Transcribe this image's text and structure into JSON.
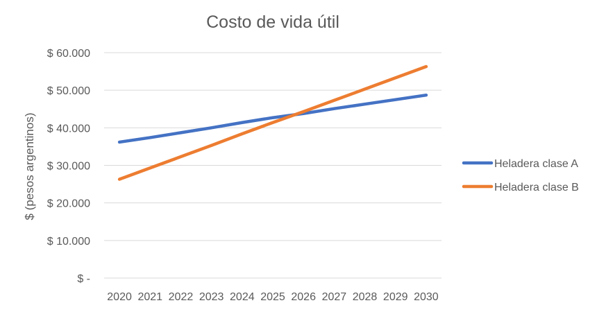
{
  "chart_data": {
    "type": "line",
    "title": "Costo de vida útil",
    "xlabel": "",
    "ylabel": "$ (pesos argentinos)",
    "x": [
      "2020",
      "2021",
      "2022",
      "2023",
      "2024",
      "2025",
      "2026",
      "2027",
      "2028",
      "2029",
      "2030"
    ],
    "ylim": [
      0,
      60000
    ],
    "yticks": [
      0,
      10000,
      20000,
      30000,
      40000,
      50000,
      60000
    ],
    "ytick_labels": [
      "$ -",
      "$ 10.000",
      "$ 20.000",
      "$ 30.000",
      "$ 40.000",
      "$ 50.000",
      "$ 60.000"
    ],
    "grid": true,
    "legend": "right",
    "series": [
      {
        "name": "Heladera clase A",
        "color": "#4472C4",
        "values": [
          36200,
          37400,
          38700,
          40000,
          41400,
          42700,
          43800,
          45100,
          46300,
          47500,
          48700
        ]
      },
      {
        "name": "Heladera clase B",
        "color": "#ED7D31",
        "values": [
          26300,
          29300,
          32300,
          35300,
          38400,
          41400,
          44300,
          47300,
          50300,
          53300,
          56300
        ]
      }
    ]
  }
}
